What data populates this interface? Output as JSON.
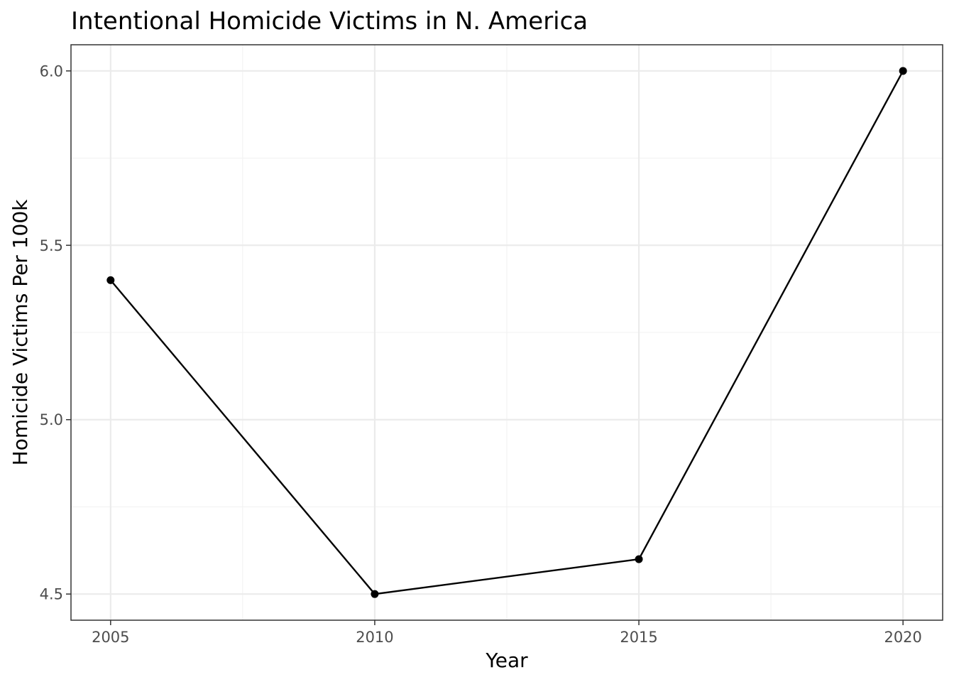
{
  "chart_data": {
    "type": "line",
    "title": "Intentional Homicide Victims in N. America",
    "xlabel": "Year",
    "ylabel": "Homicide Victims Per 100k",
    "x": [
      2005,
      2010,
      2015,
      2020
    ],
    "series": [
      {
        "values": [
          5.4,
          4.5,
          4.6,
          6.0
        ]
      }
    ],
    "xlim": [
      2004.25,
      2020.75
    ],
    "ylim": [
      4.425,
      6.075
    ],
    "x_ticks": [
      2005,
      2010,
      2015,
      2020
    ],
    "x_tick_labels": [
      "2005",
      "2010",
      "2015",
      "2020"
    ],
    "x_minor_ticks": [
      2007.5,
      2012.5,
      2017.5
    ],
    "y_ticks": [
      4.5,
      5.0,
      5.5,
      6.0
    ],
    "y_tick_labels": [
      "4.5",
      "5.0",
      "5.5",
      "6.0"
    ],
    "y_minor_ticks": [
      4.75,
      5.25,
      5.75
    ],
    "grid": true,
    "legend": "none",
    "colors": {
      "line": "#000000",
      "point": "#000000",
      "grid": "#ebebeb",
      "tick_text": "#4d4d4d"
    }
  }
}
